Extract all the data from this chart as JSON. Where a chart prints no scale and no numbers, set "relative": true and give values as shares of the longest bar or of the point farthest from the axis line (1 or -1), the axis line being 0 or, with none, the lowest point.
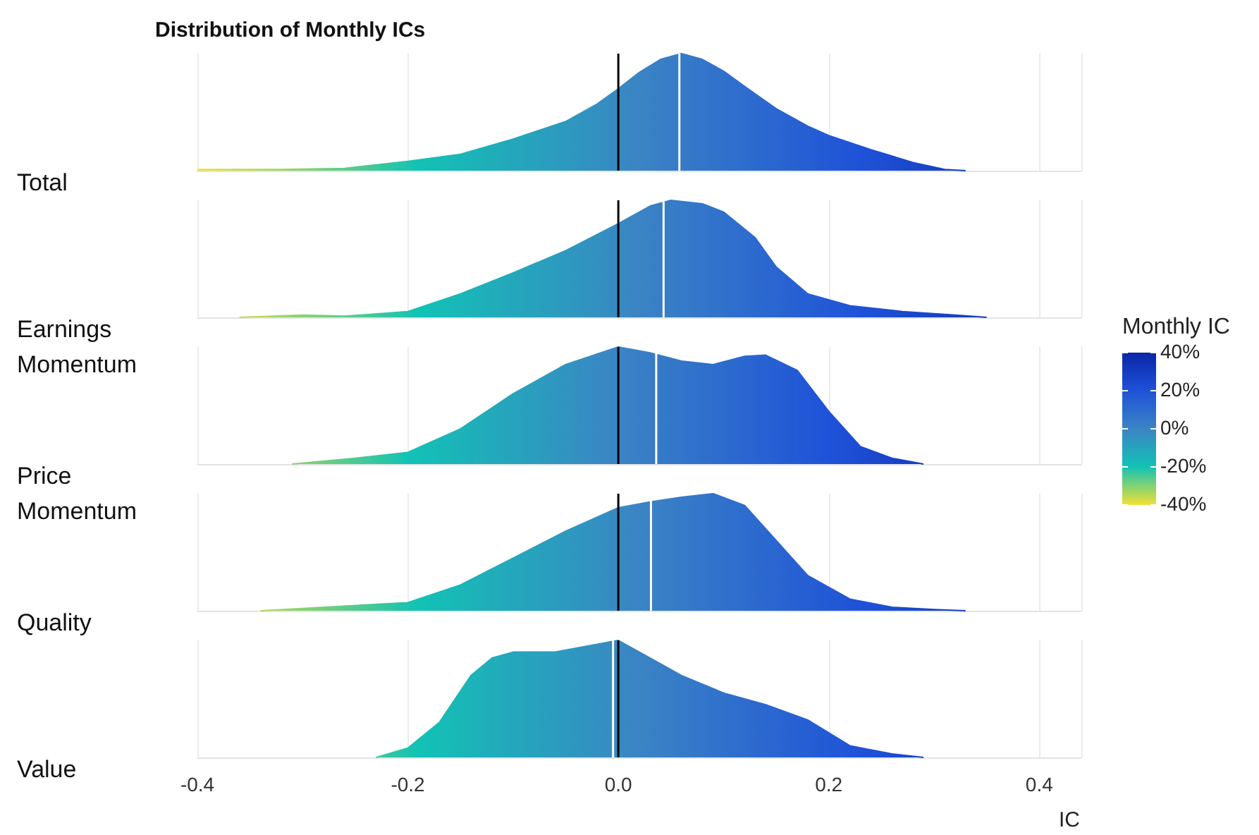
{
  "chart_data": [
    {
      "type": "area",
      "title": "Distribution of Monthly ICs",
      "ylabel": "Total",
      "relative": true,
      "grid": "x",
      "tick_labels": false,
      "xlim": [
        -0.4,
        0.44
      ],
      "xticks": [
        -0.4,
        -0.2,
        0.2,
        0.4
      ],
      "x": [
        -0.4,
        -0.32,
        -0.26,
        -0.2,
        -0.15,
        -0.1,
        -0.05,
        -0.02,
        0,
        0.02,
        0.04,
        0.06,
        0.08,
        0.1,
        0.12,
        0.15,
        0.18,
        0.2,
        0.24,
        0.28,
        0.31,
        0.33
      ],
      "values": [
        0.01,
        0.01,
        0.02,
        0.08,
        0.14,
        0.27,
        0.42,
        0.57,
        0.7,
        0.84,
        0.95,
        1,
        0.95,
        0.85,
        0.72,
        0.53,
        0.38,
        0.3,
        0.18,
        0.07,
        0.01,
        0
      ],
      "ref_lines": [
        {
          "axis": "x",
          "value": 0,
          "color": "#000000"
        },
        {
          "axis": "x",
          "value": 0.058,
          "color": "#ffffff"
        }
      ]
    },
    {
      "type": "area",
      "ylabel": "Earnings Momentum",
      "relative": true,
      "grid": "x",
      "tick_labels": false,
      "xlim": [
        -0.4,
        0.44
      ],
      "xticks": [
        -0.4,
        -0.2,
        0.2,
        0.4
      ],
      "x": [
        -0.36,
        -0.3,
        -0.26,
        -0.2,
        -0.15,
        -0.1,
        -0.05,
        0,
        0.03,
        0.05,
        0.08,
        0.1,
        0.13,
        0.15,
        0.18,
        0.22,
        0.27,
        0.32,
        0.35
      ],
      "values": [
        0,
        0.02,
        0.01,
        0.05,
        0.2,
        0.38,
        0.57,
        0.8,
        0.95,
        1,
        0.97,
        0.9,
        0.68,
        0.43,
        0.2,
        0.1,
        0.05,
        0.02,
        0
      ],
      "ref_lines": [
        {
          "axis": "x",
          "value": 0,
          "color": "#000000"
        },
        {
          "axis": "x",
          "value": 0.043,
          "color": "#ffffff"
        }
      ]
    },
    {
      "type": "area",
      "ylabel": "Price Momentum",
      "relative": true,
      "grid": "x",
      "tick_labels": false,
      "xlim": [
        -0.4,
        0.44
      ],
      "xticks": [
        -0.4,
        -0.2,
        0.2,
        0.4
      ],
      "clabel": "Monthly IC",
      "clim": [
        -0.4,
        0.4
      ],
      "cticks": [
        {
          "value": 0.4,
          "label": "40%"
        },
        {
          "value": 0.2,
          "label": "20%"
        },
        {
          "value": 0,
          "label": "0%"
        },
        {
          "value": -0.2,
          "label": "-20%"
        },
        {
          "value": -0.4,
          "label": "-40%"
        }
      ],
      "x": [
        -0.31,
        -0.25,
        -0.2,
        -0.15,
        -0.1,
        -0.05,
        0,
        0.03,
        0.06,
        0.09,
        0.12,
        0.14,
        0.17,
        0.2,
        0.23,
        0.26,
        0.29
      ],
      "values": [
        0,
        0.05,
        0.1,
        0.3,
        0.6,
        0.85,
        1,
        0.95,
        0.88,
        0.85,
        0.92,
        0.93,
        0.8,
        0.45,
        0.15,
        0.05,
        0
      ],
      "ref_lines": [
        {
          "axis": "x",
          "value": 0,
          "color": "#000000"
        },
        {
          "axis": "x",
          "value": 0.036,
          "color": "#ffffff"
        }
      ]
    },
    {
      "type": "area",
      "ylabel": "Quality",
      "relative": true,
      "grid": "x",
      "tick_labels": false,
      "xlim": [
        -0.4,
        0.44
      ],
      "xticks": [
        -0.4,
        -0.2,
        0.2,
        0.4
      ],
      "x": [
        -0.34,
        -0.3,
        -0.2,
        -0.15,
        -0.1,
        -0.05,
        0,
        0.03,
        0.06,
        0.09,
        0.12,
        0.15,
        0.18,
        0.22,
        0.26,
        0.3,
        0.33
      ],
      "values": [
        0,
        0.02,
        0.07,
        0.22,
        0.45,
        0.68,
        0.88,
        0.93,
        0.97,
        1,
        0.9,
        0.6,
        0.3,
        0.1,
        0.03,
        0.01,
        0
      ],
      "ref_lines": [
        {
          "axis": "x",
          "value": 0,
          "color": "#000000"
        },
        {
          "axis": "x",
          "value": 0.031,
          "color": "#ffffff"
        }
      ]
    },
    {
      "type": "area",
      "ylabel": "Value",
      "xlabel": "IC",
      "relative": true,
      "grid": "x",
      "tick_labels": "x",
      "xlim": [
        -0.4,
        0.44
      ],
      "xticks": [
        -0.4,
        -0.2,
        {
          "value": 0,
          "label": "0.0"
        },
        0.2,
        0.4
      ],
      "x": [
        -0.23,
        -0.2,
        -0.17,
        -0.14,
        -0.12,
        -0.1,
        -0.06,
        -0.03,
        0,
        0.03,
        0.06,
        0.1,
        0.14,
        0.18,
        0.22,
        0.26,
        0.29
      ],
      "values": [
        0,
        0.08,
        0.3,
        0.7,
        0.85,
        0.9,
        0.9,
        0.95,
        1,
        0.85,
        0.7,
        0.55,
        0.45,
        0.32,
        0.1,
        0.03,
        0
      ],
      "ref_lines": [
        {
          "axis": "x",
          "value": 0,
          "color": "#000000"
        },
        {
          "axis": "x",
          "value": -0.005,
          "color": "#ffffff"
        }
      ]
    }
  ]
}
